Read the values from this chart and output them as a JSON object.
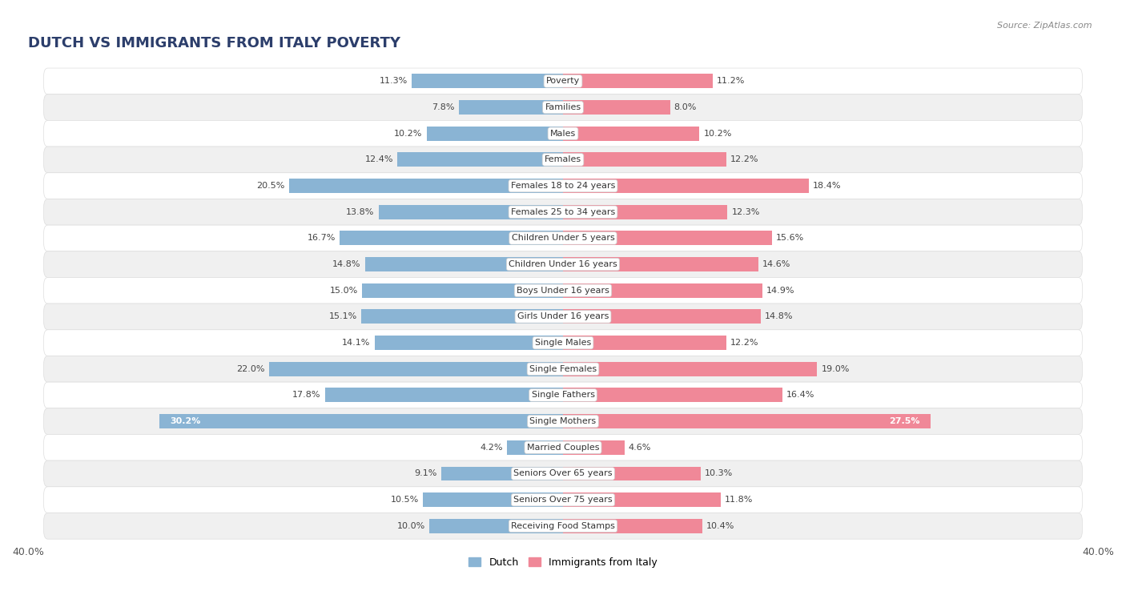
{
  "title": "DUTCH VS IMMIGRANTS FROM ITALY POVERTY",
  "source": "Source: ZipAtlas.com",
  "categories": [
    "Poverty",
    "Families",
    "Males",
    "Females",
    "Females 18 to 24 years",
    "Females 25 to 34 years",
    "Children Under 5 years",
    "Children Under 16 years",
    "Boys Under 16 years",
    "Girls Under 16 years",
    "Single Males",
    "Single Females",
    "Single Fathers",
    "Single Mothers",
    "Married Couples",
    "Seniors Over 65 years",
    "Seniors Over 75 years",
    "Receiving Food Stamps"
  ],
  "dutch_values": [
    11.3,
    7.8,
    10.2,
    12.4,
    20.5,
    13.8,
    16.7,
    14.8,
    15.0,
    15.1,
    14.1,
    22.0,
    17.8,
    30.2,
    4.2,
    9.1,
    10.5,
    10.0
  ],
  "italy_values": [
    11.2,
    8.0,
    10.2,
    12.2,
    18.4,
    12.3,
    15.6,
    14.6,
    14.9,
    14.8,
    12.2,
    19.0,
    16.4,
    27.5,
    4.6,
    10.3,
    11.8,
    10.4
  ],
  "dutch_color": "#8ab4d4",
  "italy_color": "#f08898",
  "dutch_label": "Dutch",
  "italy_label": "Immigrants from Italy",
  "xlim": 40.0,
  "page_bg": "#ffffff",
  "row_bg_even": "#f0f0f0",
  "row_bg_odd": "#ffffff",
  "title_fontsize": 13,
  "label_fontsize": 8,
  "value_fontsize": 8
}
